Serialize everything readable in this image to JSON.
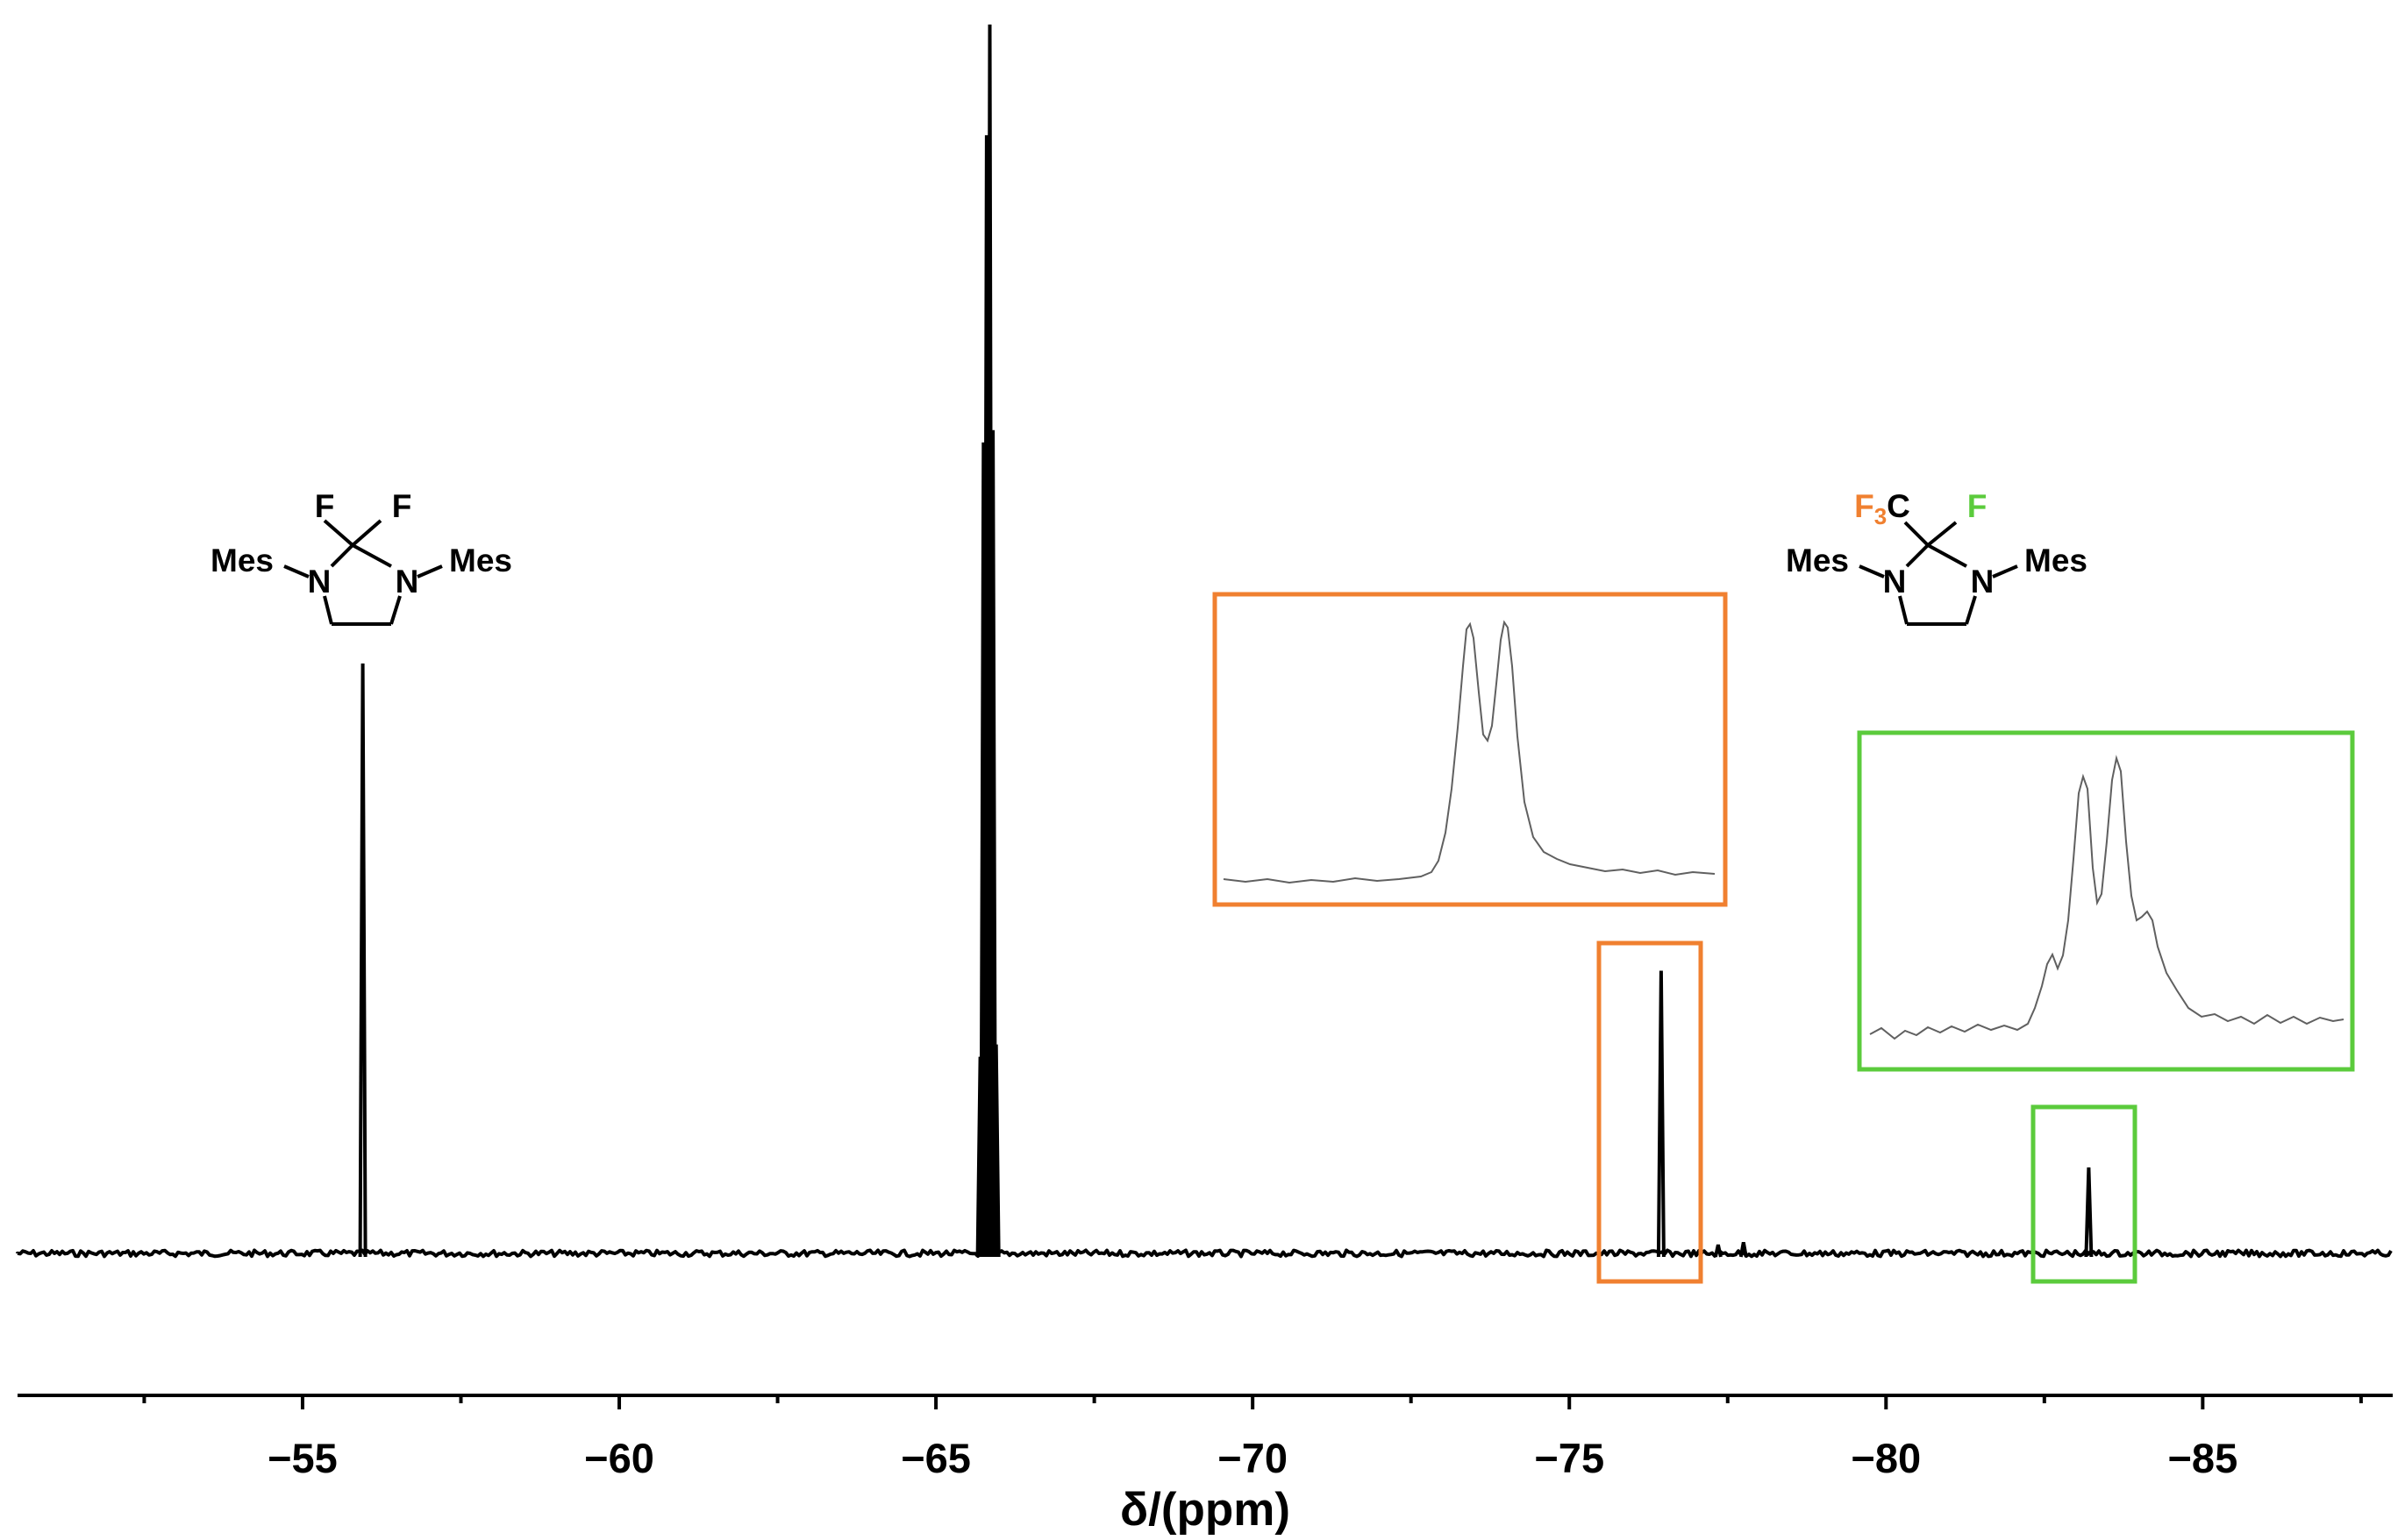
{
  "chart_data": {
    "type": "line",
    "title": "",
    "xlabel": "δ/(ppm)",
    "ylabel": "",
    "xlim": [
      -50.5,
      -88.0
    ],
    "x_reversed": true,
    "grid": false,
    "legend": "none",
    "x_ticks": [
      -55,
      -60,
      -65,
      -70,
      -75,
      -80,
      -85
    ],
    "x_tick_labels": [
      "−55",
      "−60",
      "−65",
      "−70",
      "−75",
      "−80",
      "−85"
    ],
    "x_minor_tick_step": 2.5,
    "series": [
      {
        "peaks": [
          {
            "x": -55.95,
            "y": 0.48,
            "label": "difluoro"
          },
          {
            "x": -65.7,
            "y": 0.16
          },
          {
            "x": -65.75,
            "y": 0.66
          },
          {
            "x": -65.8,
            "y": 0.91
          },
          {
            "x": -65.85,
            "y": 1.0
          },
          {
            "x": -65.9,
            "y": 0.67
          },
          {
            "x": -65.95,
            "y": 0.17
          },
          {
            "x": -76.45,
            "y": 0.23,
            "label": "CF3"
          },
          {
            "x": -77.35,
            "y": 0.007
          },
          {
            "x": -77.75,
            "y": 0.009
          },
          {
            "x": -83.2,
            "y": 0.07,
            "label": "CF"
          }
        ]
      }
    ],
    "structures": [
      {
        "name": "difluoro-imidazolidine",
        "substituents": {
          "left": "Mes",
          "right": "Mes",
          "top_left": "F",
          "top_right": "F"
        },
        "atoms": [
          "N",
          "N"
        ]
      },
      {
        "name": "trifluoromethyl-fluoro-imidazolidine",
        "substituents": {
          "left": "Mes",
          "right": "Mes",
          "top_left": "F3C",
          "top_right": "F"
        },
        "atoms": [
          "N",
          "N"
        ],
        "colors": {
          "F3": "#F08030",
          "F": "#5BCB3C"
        }
      }
    ],
    "highlights": [
      {
        "name": "CF3 peak",
        "color": "#F08030",
        "x_range": [
          -75.6,
          -77.2
        ]
      },
      {
        "name": "CF peak",
        "color": "#5BCB3C",
        "x_range": [
          -82.5,
          -84.1
        ]
      }
    ]
  },
  "colors": {
    "spectrum": "#000000",
    "orange": "#F08030",
    "green": "#5BCB3C",
    "inset_trace": "#606060"
  }
}
